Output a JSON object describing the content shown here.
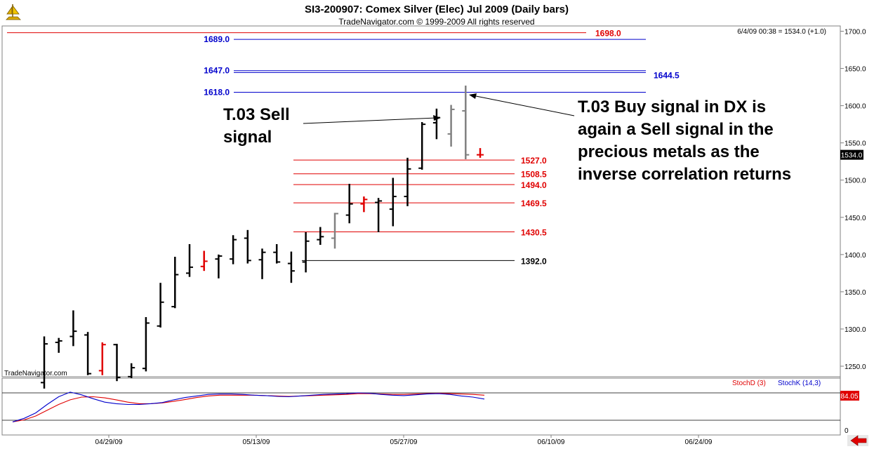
{
  "header": {
    "title": "SI3-200907:  Comex Silver (Elec) Jul 2009  (Daily bars)",
    "subtitle": "TradeNavigator.com © 1999-2009 All rights reserved",
    "last_quote": "6/4/09 00:38 = 1534.0 (+1.0)",
    "watermark": "TradeNavigator.com"
  },
  "chart_data": [
    {
      "type": "ohlc",
      "title": "SI3-200907:  Comex Silver (Elec) Jul 2009  (Daily bars)",
      "ylim": [
        1225,
        1715
      ],
      "y_ticks": [
        1250.0,
        1300.0,
        1350.0,
        1400.0,
        1450.0,
        1500.0,
        1550.0,
        1600.0,
        1650.0,
        1700.0
      ],
      "y_tick_labels": [
        "1250.0",
        "1300.0",
        "1350.0",
        "1400.0",
        "1450.0",
        "1500.0",
        "1550.0",
        "1600.0",
        "1650.0",
        "1700.0"
      ],
      "last_price_label": "1534.0",
      "last_price": 1534.0,
      "x_tick_labels": [
        "04/29/09",
        "05/13/09",
        "05/27/09",
        "06/10/09",
        "06/24/09"
      ],
      "bars": [
        {
          "o": 1228,
          "h": 1290,
          "l": 1220,
          "c": 1280,
          "color": "#000000"
        },
        {
          "o": 1282,
          "h": 1288,
          "l": 1268,
          "c": 1284,
          "color": "#000000"
        },
        {
          "o": 1290,
          "h": 1325,
          "l": 1277,
          "c": 1297,
          "color": "#000000"
        },
        {
          "o": 1292,
          "h": 1296,
          "l": 1238,
          "c": 1240,
          "color": "#000000"
        },
        {
          "o": 1244,
          "h": 1282,
          "l": 1238,
          "c": 1279,
          "color": "#e00000"
        },
        {
          "o": 1279,
          "h": 1280,
          "l": 1230,
          "c": 1235,
          "color": "#000000"
        },
        {
          "o": 1236,
          "h": 1254,
          "l": 1234,
          "c": 1248,
          "color": "#000000"
        },
        {
          "o": 1247,
          "h": 1316,
          "l": 1243,
          "c": 1308,
          "color": "#000000"
        },
        {
          "o": 1304,
          "h": 1362,
          "l": 1302,
          "c": 1336,
          "color": "#000000"
        },
        {
          "o": 1330,
          "h": 1397,
          "l": 1328,
          "c": 1373,
          "color": "#000000"
        },
        {
          "o": 1375,
          "h": 1414,
          "l": 1370,
          "c": 1383,
          "color": "#000000"
        },
        {
          "o": 1384,
          "h": 1405,
          "l": 1378,
          "c": 1391,
          "color": "#e00000"
        },
        {
          "o": 1394,
          "h": 1400,
          "l": 1368,
          "c": 1398,
          "color": "#000000"
        },
        {
          "o": 1394,
          "h": 1426,
          "l": 1387,
          "c": 1420,
          "color": "#000000"
        },
        {
          "o": 1422,
          "h": 1433,
          "l": 1388,
          "c": 1392,
          "color": "#000000"
        },
        {
          "o": 1393,
          "h": 1408,
          "l": 1367,
          "c": 1403,
          "color": "#000000"
        },
        {
          "o": 1403,
          "h": 1414,
          "l": 1388,
          "c": 1390,
          "color": "#000000"
        },
        {
          "o": 1388,
          "h": 1404,
          "l": 1362,
          "c": 1378,
          "color": "#000000"
        },
        {
          "o": 1390,
          "h": 1430,
          "l": 1376,
          "c": 1418,
          "color": "#000000"
        },
        {
          "o": 1420,
          "h": 1437,
          "l": 1413,
          "c": 1424,
          "color": "#000000"
        },
        {
          "o": 1422,
          "h": 1456,
          "l": 1408,
          "c": 1455,
          "color": "#808080"
        },
        {
          "o": 1453,
          "h": 1495,
          "l": 1442,
          "c": 1468,
          "color": "#000000"
        },
        {
          "o": 1468,
          "h": 1478,
          "l": 1457,
          "c": 1474,
          "color": "#e00000"
        },
        {
          "o": 1470,
          "h": 1476,
          "l": 1430,
          "c": 1472,
          "color": "#000000"
        },
        {
          "o": 1461,
          "h": 1503,
          "l": 1438,
          "c": 1478,
          "color": "#000000"
        },
        {
          "o": 1478,
          "h": 1530,
          "l": 1465,
          "c": 1515,
          "color": "#000000"
        },
        {
          "o": 1516,
          "h": 1578,
          "l": 1514,
          "c": 1575,
          "color": "#000000"
        },
        {
          "o": 1577,
          "h": 1596,
          "l": 1555,
          "c": 1584,
          "color": "#000000"
        },
        {
          "o": 1562,
          "h": 1601,
          "l": 1545,
          "c": 1595,
          "color": "#808080"
        },
        {
          "o": 1593,
          "h": 1627,
          "l": 1528,
          "c": 1534,
          "color": "#808080"
        },
        {
          "o": 1534,
          "h": 1543,
          "l": 1530,
          "c": 1534,
          "color": "#e00000"
        }
      ],
      "horizontal_lines": [
        {
          "value": 1698.0,
          "label": "1698.0",
          "color": "#e00000",
          "label_side": "right-red"
        },
        {
          "value": 1689.0,
          "label": "1689.0",
          "color": "#0000cc",
          "label_side": "left"
        },
        {
          "value": 1647.0,
          "label": "1647.0",
          "color": "#0000cc",
          "label_side": "left"
        },
        {
          "value": 1644.5,
          "label": "1644.5",
          "color": "#0000cc",
          "label_side": "right"
        },
        {
          "value": 1618.0,
          "label": "1618.0",
          "color": "#0000cc",
          "label_side": "left"
        },
        {
          "value": 1527.0,
          "label": "1527.0",
          "color": "#e00000",
          "label_side": "right"
        },
        {
          "value": 1508.5,
          "label": "1508.5",
          "color": "#e00000",
          "label_side": "right"
        },
        {
          "value": 1494.0,
          "label": "1494.0",
          "color": "#e00000",
          "label_side": "right"
        },
        {
          "value": 1469.5,
          "label": "1469.5",
          "color": "#e00000",
          "label_side": "right"
        },
        {
          "value": 1430.5,
          "label": "1430.5",
          "color": "#e00000",
          "label_side": "right"
        },
        {
          "value": 1392.0,
          "label": "1392.0",
          "color": "#000000",
          "label_side": "right"
        }
      ],
      "annotations": [
        {
          "lines": [
            "T.03 Sell",
            "signal"
          ]
        },
        {
          "lines": [
            "T.03 Buy signal in DX is",
            "again a Sell signal in the",
            "precious metals as the",
            "inverse correlation returns"
          ]
        }
      ]
    },
    {
      "type": "line",
      "title": "",
      "ylim": [
        0,
        100
      ],
      "y_tick_labels": [
        "0"
      ],
      "last_value_label": "84.05",
      "series": [
        {
          "name": "StochD (3)",
          "color": "#e00000",
          "values": [
            5,
            10,
            20,
            35,
            50,
            62,
            69,
            70,
            67,
            62,
            56,
            52,
            52,
            54,
            58,
            63,
            68,
            72,
            74,
            74,
            74,
            74,
            73,
            72,
            71,
            72,
            73,
            74,
            75,
            76,
            78,
            78,
            77,
            76,
            76,
            77,
            78,
            79,
            78,
            77,
            76,
            74
          ]
        },
        {
          "name": "StochK (14,3)",
          "color": "#0000cc",
          "values": [
            5,
            14,
            28,
            50,
            70,
            82,
            75,
            65,
            56,
            52,
            50,
            50,
            52,
            55,
            62,
            68,
            72,
            76,
            77,
            77,
            76,
            74,
            73,
            71,
            70,
            72,
            74,
            76,
            77,
            78,
            80,
            79,
            76,
            74,
            73,
            75,
            77,
            78,
            76,
            72,
            69,
            64
          ]
        }
      ]
    }
  ]
}
